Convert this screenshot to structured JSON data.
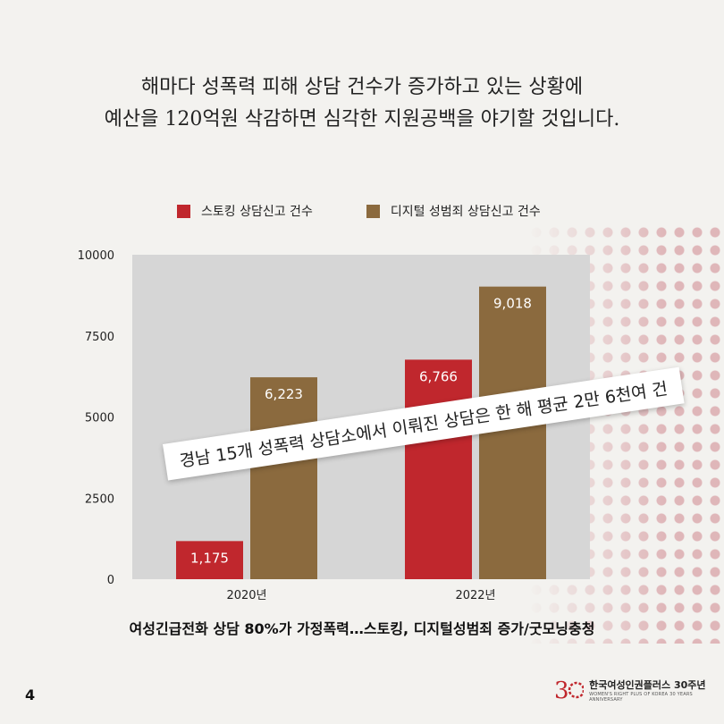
{
  "headline": {
    "line1": "해마다 성폭력 피해 상담 건수가 증가하고 있는 상황에",
    "line2": "예산을 120억원 삭감하면 심각한 지원공백을 야기할 것입니다."
  },
  "banner_text": "경남 15개 성폭력 상담소에서 이뤄진 상담은 한 해 평균 2만 6천여 건",
  "source_text": "여성긴급전화 상담 80%가 가정폭력…스토킹, 디지털성범죄 증가/굿모닝충청",
  "page_number": "4",
  "logo": {
    "title": "한국여성인권플러스 30주년",
    "subtitle": "WOMEN'S RIGHT PLUS OF KOREA 30 YEARS ANNIVERSARY"
  },
  "colors": {
    "series1": "#c0272d",
    "series2": "#8b6a3e",
    "plot_bg": "#d6d6d6",
    "logo_accent": "#c0272d"
  },
  "chart_data": {
    "type": "bar",
    "categories": [
      "2020년",
      "2022년"
    ],
    "series": [
      {
        "name": "스토킹 상담신고 건수",
        "values": [
          1175,
          6766
        ],
        "labels": [
          "1,175",
          "6,766"
        ]
      },
      {
        "name": "디지털 성범죄 상담신고 건수",
        "values": [
          6223,
          9018
        ],
        "labels": [
          "6,223",
          "9,018"
        ]
      }
    ],
    "ylim": [
      0,
      10000
    ],
    "yticks": [
      "0",
      "2500",
      "5000",
      "7500",
      "10000"
    ],
    "legend_position": "top",
    "grid": false
  }
}
